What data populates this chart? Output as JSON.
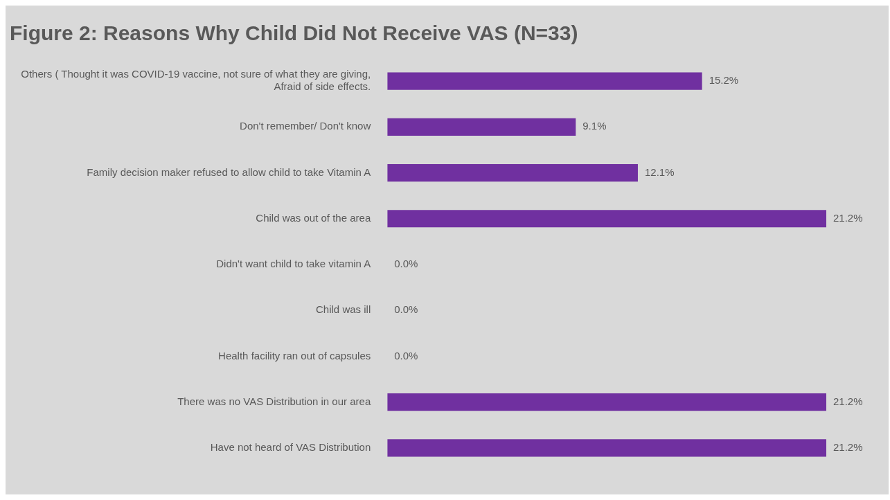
{
  "chart_data": {
    "type": "bar",
    "orientation": "horizontal",
    "title": "Figure 2: Reasons Why Child Did Not Receive VAS (N=33)",
    "categories": [
      "Others ( Thought it was COVID-19 vaccine, not sure of what they are giving, Afraid of side effects.",
      "Don't remember/ Don't know",
      "Family decision maker refused to allow child to take Vitamin A",
      "Child was out of the area",
      "Didn't want child to take vitamin A",
      "Child was ill",
      "Health facility ran out of capsules",
      "There was no VAS Distribution in our area",
      "Have not heard of VAS Distribution"
    ],
    "values": [
      15.2,
      9.1,
      12.1,
      21.2,
      0,
      0,
      0,
      21.2,
      21.2
    ],
    "value_labels": [
      "15.2%",
      "9.1%",
      "12.1%",
      "21.2%",
      "0.0%",
      "0.0%",
      "0.0%",
      "21.2%",
      "21.2%"
    ],
    "color": "#7030a0",
    "legend": false
  }
}
